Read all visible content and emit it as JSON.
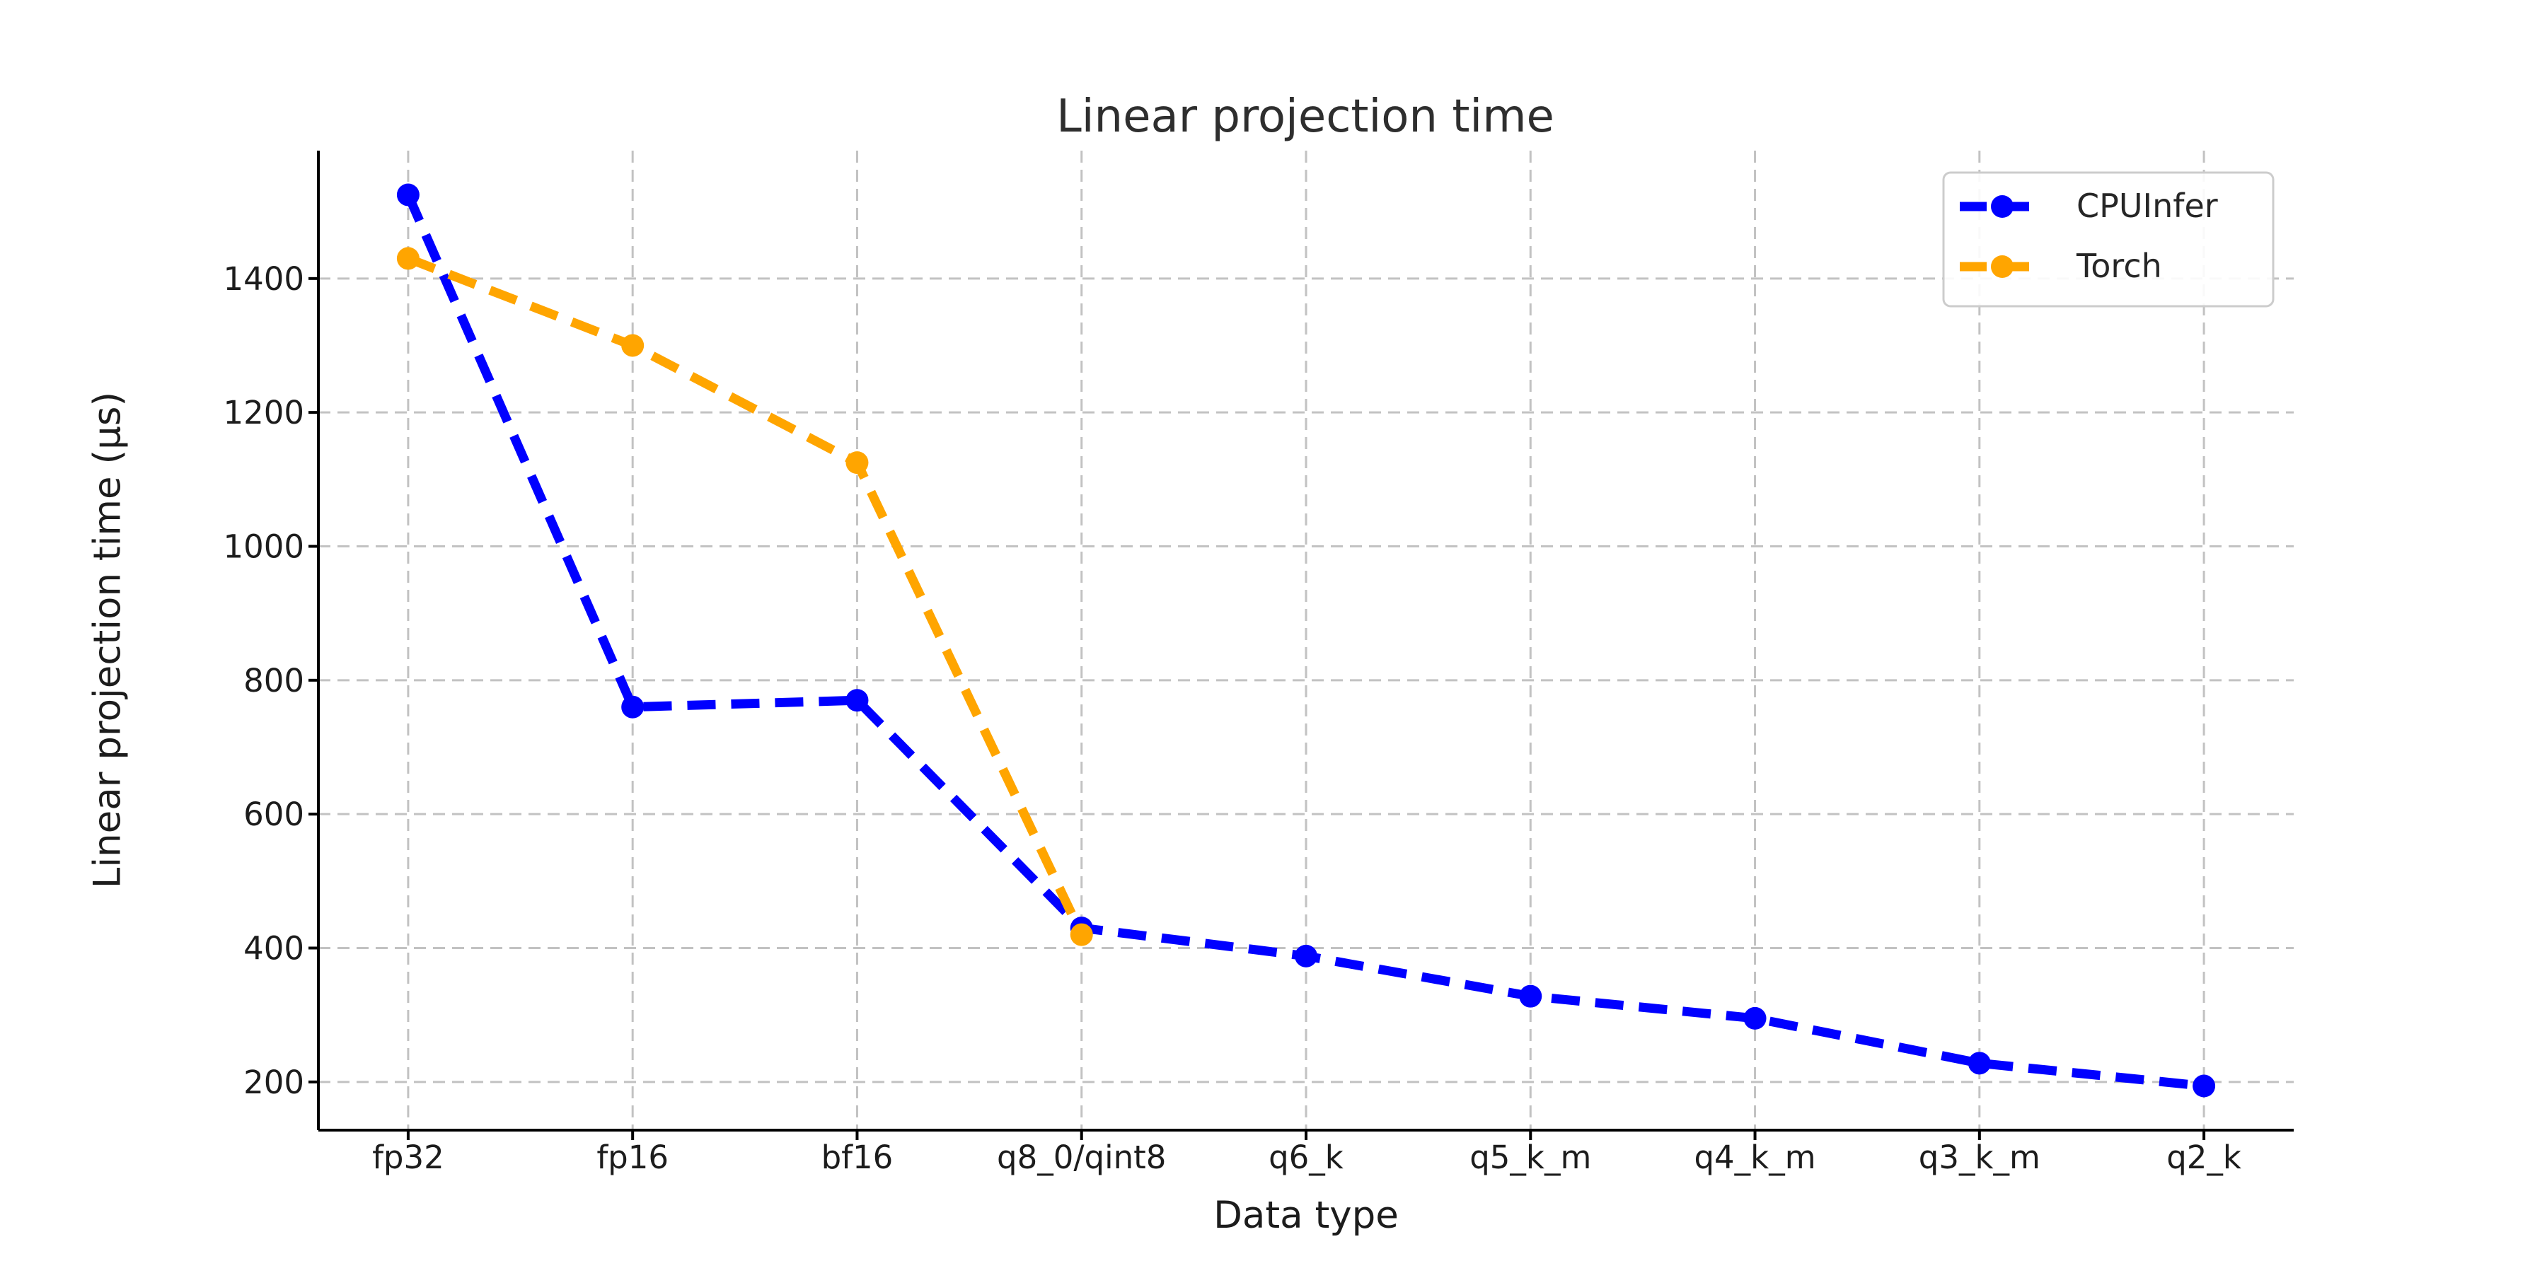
{
  "chart_data": {
    "type": "line",
    "title": "Linear projection time",
    "xlabel": "Data type",
    "ylabel": "Linear projection time (µs)",
    "categories": [
      "fp32",
      "fp16",
      "bf16",
      "q8_0/qint8",
      "q6_k",
      "q5_k_m",
      "q4_k_m",
      "q3_k_m",
      "q2_k"
    ],
    "series": [
      {
        "name": "CPUInfer",
        "color": "#0000ff",
        "values": [
          1525,
          760,
          770,
          430,
          388,
          328,
          295,
          228,
          194
        ]
      },
      {
        "name": "Torch",
        "color": "#ffa500",
        "values": [
          1430,
          1300,
          1125,
          420
        ]
      }
    ],
    "yticks": [
      200,
      400,
      600,
      800,
      1000,
      1200,
      1400
    ],
    "ylim": [
      128,
      1591
    ],
    "grid": true,
    "grid_style": "dashed",
    "line_style": "dashed",
    "marker": "circle",
    "legend_position": "upper right",
    "grid_color": "#c2c2c2",
    "spine_color": "#000000",
    "background_color": "#ffffff"
  }
}
